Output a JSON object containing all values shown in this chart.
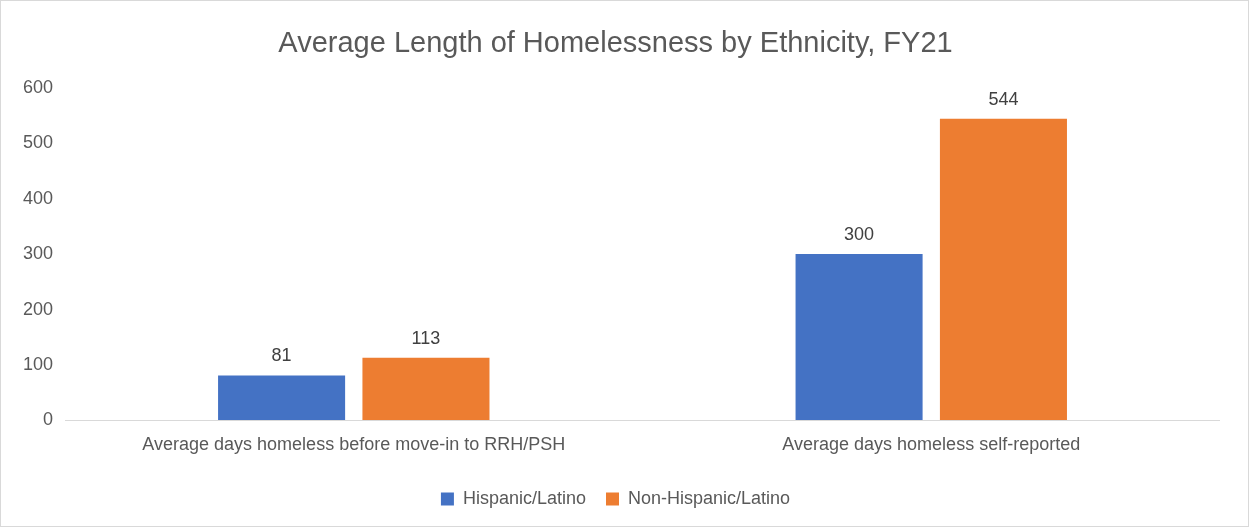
{
  "chart_data": {
    "type": "bar",
    "title": "Average Length of Homelessness by Ethnicity, FY21",
    "categories": [
      "Average days homeless before move-in to RRH/PSH",
      "Average days homeless self-reported"
    ],
    "series": [
      {
        "name": "Hispanic/Latino",
        "color": "#4472c4",
        "values": [
          81,
          300
        ]
      },
      {
        "name": "Non-Hispanic/Latino",
        "color": "#ed7d31",
        "values": [
          113,
          544
        ]
      }
    ],
    "ylim": [
      0,
      600
    ],
    "yticks": [
      0,
      100,
      200,
      300,
      400,
      500,
      600
    ],
    "grid": false,
    "legend": "bottom",
    "data_labels": true
  }
}
